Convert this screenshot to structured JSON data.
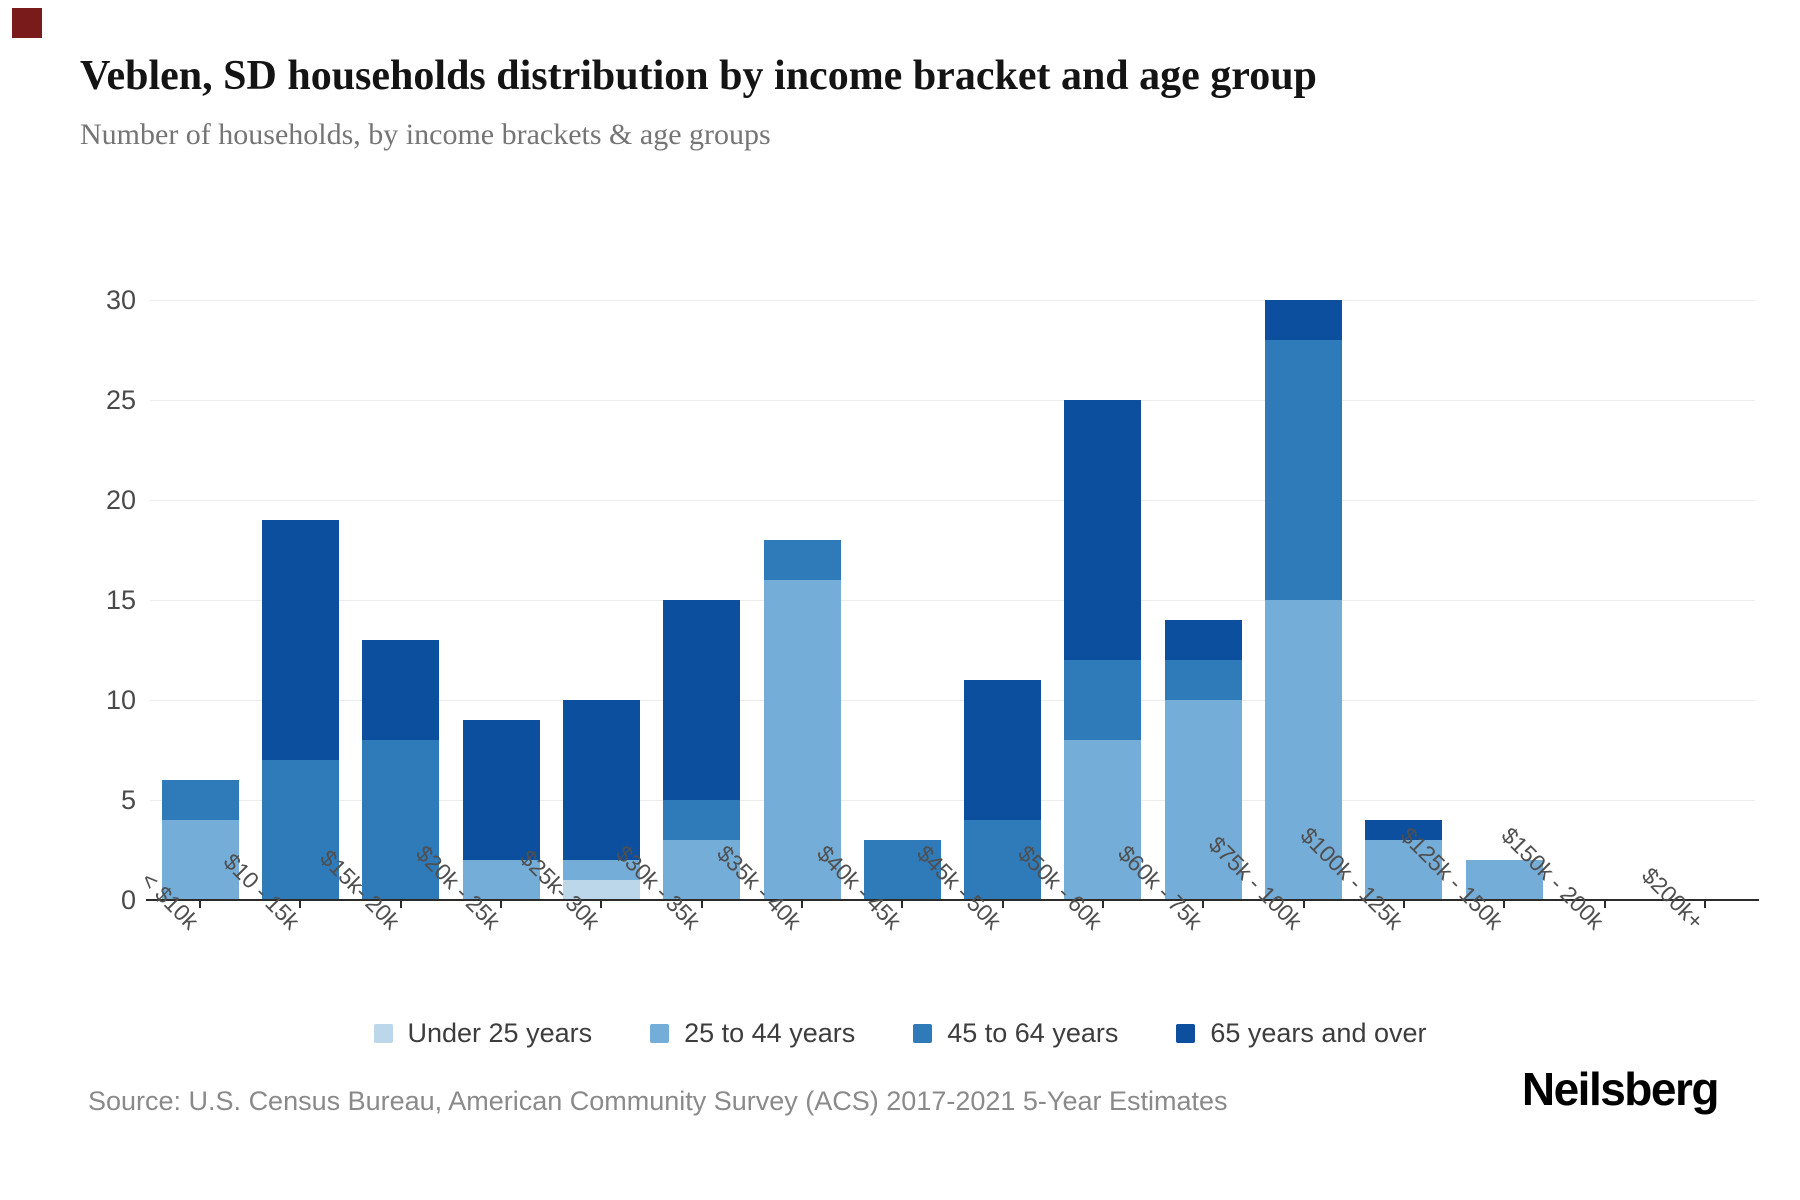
{
  "header": {
    "title": "Veblen, SD households distribution by income bracket and age group",
    "subtitle": "Number of households, by income brackets & age groups"
  },
  "source": "Source: U.S. Census Bureau, American Community Survey (ACS) 2017-2021 5-Year Estimates",
  "brand": "Neilsberg",
  "colors": {
    "under_25": "#bdd7ea",
    "age_25_44": "#74add8",
    "age_45_64": "#2f7ab9",
    "age_65_over": "#0b4f9e",
    "gridline": "#ececec",
    "axis": "#2b2b2b"
  },
  "chart_data": {
    "type": "bar",
    "stacked": true,
    "categories": [
      "< $10k",
      "$10 - 15k",
      "$15k- 20k",
      "$20k - 25k",
      "$25k- 30k",
      "$30k - 35k",
      "$35k - 40k",
      "$40k - 45k",
      "$45k - 50k",
      "$50k - 60k",
      "$60k - 75k",
      "$75k - 100k",
      "$100k - 125k",
      "$125k - 150k",
      "$150k - 200k",
      "$200k+"
    ],
    "series": [
      {
        "name": "Under 25 years",
        "color": "#bdd7ea",
        "values": [
          0,
          0,
          0,
          0,
          1,
          0,
          0,
          0,
          0,
          0,
          0,
          0,
          0,
          0,
          0,
          0
        ]
      },
      {
        "name": "25 to 44 years",
        "color": "#74add8",
        "values": [
          4,
          0,
          0,
          2,
          1,
          3,
          16,
          0,
          0,
          8,
          10,
          15,
          3,
          2,
          0,
          0
        ]
      },
      {
        "name": "45 to 64 years",
        "color": "#2f7ab9",
        "values": [
          2,
          7,
          8,
          0,
          0,
          2,
          2,
          3,
          4,
          4,
          2,
          13,
          0,
          0,
          0,
          0
        ]
      },
      {
        "name": "65 years and over",
        "color": "#0b4f9e",
        "values": [
          0,
          12,
          5,
          7,
          8,
          10,
          0,
          0,
          7,
          13,
          2,
          2,
          1,
          0,
          0,
          0
        ]
      }
    ],
    "totals": [
      6,
      19,
      13,
      9,
      10,
      15,
      18,
      3,
      11,
      25,
      14,
      30,
      4,
      2,
      0,
      0
    ],
    "title": "Veblen, SD households distribution by income bracket and age group",
    "xlabel": "",
    "ylabel": "",
    "yticks": [
      0,
      5,
      10,
      15,
      20,
      25,
      30
    ],
    "ylim": [
      0,
      30
    ],
    "grid": true,
    "legend_position": "bottom"
  }
}
